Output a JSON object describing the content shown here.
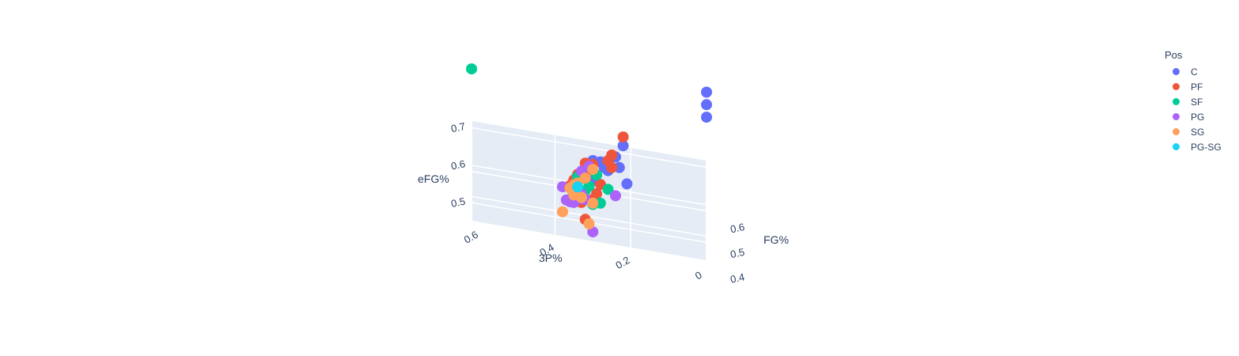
{
  "chart_data": {
    "type": "scatter",
    "dimensions": 3,
    "axes": {
      "x": {
        "title": "3P%",
        "ticks": [
          "0",
          "0.2",
          "0.4",
          "0.6"
        ]
      },
      "y": {
        "title": "FG%",
        "ticks": [
          "0.4",
          "0.5",
          "0.6"
        ]
      },
      "z": {
        "title": "eFG%",
        "ticks": [
          "0.5",
          "0.6",
          "0.7"
        ]
      }
    },
    "legend": {
      "title": "Pos",
      "placement": "top-right",
      "entries": [
        {
          "name": "C",
          "color": "#636efa"
        },
        {
          "name": "PF",
          "color": "#ef553b"
        },
        {
          "name": "SF",
          "color": "#00cc96"
        },
        {
          "name": "PG",
          "color": "#ab63fa"
        },
        {
          "name": "SG",
          "color": "#ffa15a"
        },
        {
          "name": "PG-SG",
          "color": "#19d3f3"
        }
      ]
    },
    "series": [
      {
        "name": "C",
        "points": [
          [
            0.0,
            0.7,
            0.7
          ],
          [
            0.0,
            0.68,
            0.68
          ],
          [
            0.0,
            0.66,
            0.66
          ],
          [
            0.22,
            0.55,
            0.62
          ],
          [
            0.23,
            0.52,
            0.58
          ],
          [
            0.21,
            0.52,
            0.54
          ],
          [
            0.24,
            0.53,
            0.6
          ],
          [
            0.28,
            0.5,
            0.6
          ],
          [
            0.3,
            0.5,
            0.6
          ],
          [
            0.3,
            0.48,
            0.56
          ],
          [
            0.26,
            0.5,
            0.58
          ],
          [
            0.27,
            0.51,
            0.58
          ],
          [
            0.34,
            0.47,
            0.54
          ],
          [
            0.33,
            0.48,
            0.52
          ],
          [
            0.35,
            0.46,
            0.55
          ]
        ]
      },
      {
        "name": "PF",
        "points": [
          [
            0.22,
            0.57,
            0.63
          ],
          [
            0.25,
            0.55,
            0.59
          ],
          [
            0.26,
            0.54,
            0.58
          ],
          [
            0.25,
            0.53,
            0.57
          ],
          [
            0.3,
            0.5,
            0.59
          ],
          [
            0.32,
            0.5,
            0.59
          ],
          [
            0.31,
            0.49,
            0.58
          ],
          [
            0.34,
            0.48,
            0.57
          ],
          [
            0.36,
            0.46,
            0.55
          ],
          [
            0.35,
            0.47,
            0.56
          ],
          [
            0.33,
            0.46,
            0.51
          ],
          [
            0.3,
            0.45,
            0.53
          ],
          [
            0.32,
            0.44,
            0.48
          ],
          [
            0.29,
            0.46,
            0.54
          ],
          [
            0.28,
            0.47,
            0.56
          ]
        ]
      },
      {
        "name": "SF",
        "points": [
          [
            0.62,
            0.62,
            0.71
          ],
          [
            0.26,
            0.5,
            0.53
          ],
          [
            0.28,
            0.47,
            0.51
          ],
          [
            0.3,
            0.46,
            0.51
          ],
          [
            0.31,
            0.47,
            0.55
          ],
          [
            0.29,
            0.49,
            0.57
          ],
          [
            0.32,
            0.48,
            0.53
          ],
          [
            0.34,
            0.47,
            0.57
          ],
          [
            0.36,
            0.45,
            0.52
          ],
          [
            0.33,
            0.48,
            0.56
          ]
        ]
      },
      {
        "name": "PG",
        "points": [
          [
            0.24,
            0.48,
            0.53
          ],
          [
            0.3,
            0.44,
            0.45
          ],
          [
            0.33,
            0.45,
            0.54
          ],
          [
            0.35,
            0.46,
            0.55
          ],
          [
            0.36,
            0.44,
            0.52
          ],
          [
            0.37,
            0.43,
            0.53
          ],
          [
            0.38,
            0.45,
            0.55
          ],
          [
            0.34,
            0.44,
            0.53
          ],
          [
            0.36,
            0.45,
            0.55
          ],
          [
            0.32,
            0.47,
            0.57
          ],
          [
            0.33,
            0.48,
            0.58
          ],
          [
            0.31,
            0.49,
            0.59
          ],
          [
            0.34,
            0.47,
            0.53
          ],
          [
            0.35,
            0.44,
            0.52
          ],
          [
            0.32,
            0.46,
            0.52
          ]
        ]
      },
      {
        "name": "SG",
        "points": [
          [
            0.38,
            0.41,
            0.51
          ],
          [
            0.31,
            0.44,
            0.47
          ],
          [
            0.33,
            0.45,
            0.53
          ],
          [
            0.35,
            0.44,
            0.54
          ],
          [
            0.34,
            0.46,
            0.56
          ],
          [
            0.32,
            0.47,
            0.57
          ],
          [
            0.3,
            0.48,
            0.59
          ],
          [
            0.36,
            0.45,
            0.55
          ],
          [
            0.33,
            0.45,
            0.53
          ],
          [
            0.35,
            0.45,
            0.56
          ],
          [
            0.3,
            0.45,
            0.52
          ]
        ]
      },
      {
        "name": "PG-SG",
        "points": [
          [
            0.34,
            0.46,
            0.55
          ]
        ]
      }
    ]
  }
}
